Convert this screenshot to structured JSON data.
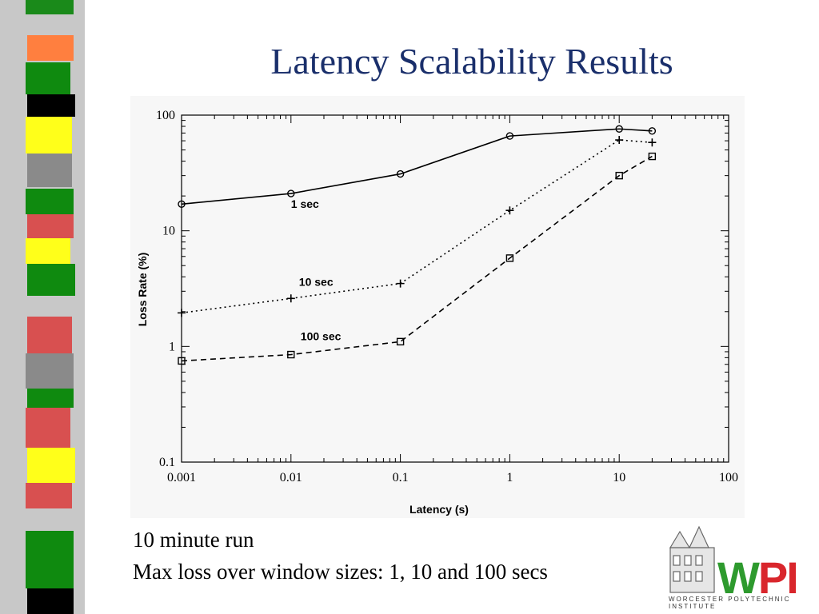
{
  "slide": {
    "title": "Latency Scalability Results",
    "caption_line1": "10 minute run",
    "caption_line2": "Max loss over window sizes: 1, 10 and 100 secs"
  },
  "logo": {
    "text_w": "W",
    "text_pi": "PI",
    "subtitle": "WORCESTER POLYTECHNIC INSTITUTE"
  },
  "colors": {
    "title": "#1a2f6b",
    "logo_green": "#2e9a2e",
    "logo_red": "#d9262c"
  },
  "chart_data": {
    "type": "line",
    "xlabel": "Latency (s)",
    "ylabel": "Loss Rate (%)",
    "xscale": "log",
    "yscale": "log",
    "xlim": [
      0.001,
      100
    ],
    "ylim": [
      0.1,
      100
    ],
    "x_tick_labels": [
      "0.001",
      "0.01",
      "0.1",
      "1",
      "10",
      "100"
    ],
    "y_tick_labels": [
      "0.1",
      "1",
      "10",
      "100"
    ],
    "grid": false,
    "series": [
      {
        "name": "1 sec",
        "marker": "circle",
        "line": "solid",
        "x": [
          0.001,
          0.01,
          0.1,
          1,
          10,
          20
        ],
        "y": [
          17,
          21,
          31,
          66,
          76,
          73
        ]
      },
      {
        "name": "10 sec",
        "marker": "plus",
        "line": "dotted",
        "x": [
          0.001,
          0.01,
          0.1,
          1,
          10,
          20
        ],
        "y": [
          1.95,
          2.6,
          3.5,
          15,
          61,
          58
        ]
      },
      {
        "name": "100 sec",
        "marker": "square",
        "line": "dashed",
        "x": [
          0.001,
          0.01,
          0.1,
          1,
          10,
          20
        ],
        "y": [
          0.75,
          0.85,
          1.1,
          5.8,
          30,
          44
        ]
      }
    ]
  }
}
